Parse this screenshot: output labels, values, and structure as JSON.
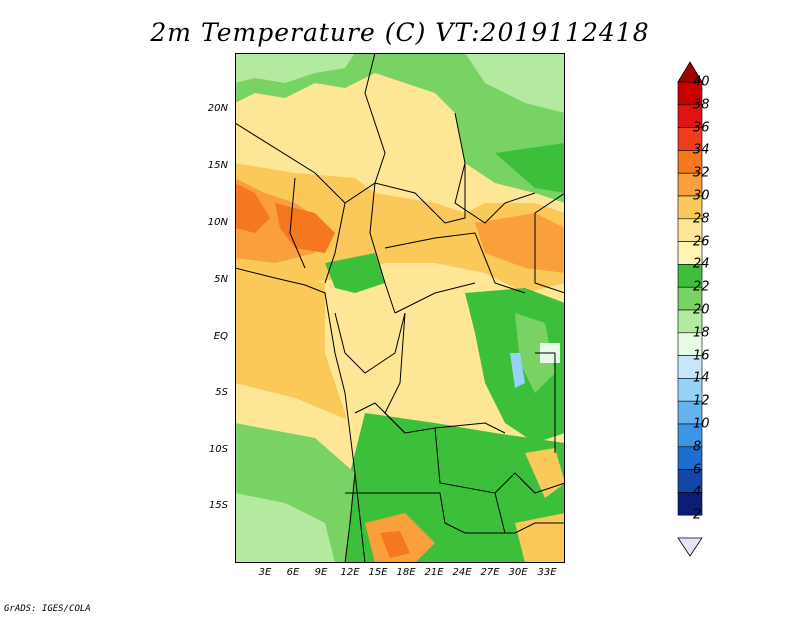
{
  "title": "2m Temperature (C) VT:2019112418",
  "footer": "GrADS: IGES/COLA",
  "map": {
    "lon_range": [
      0,
      35
    ],
    "lat_range": [
      -20,
      25
    ],
    "lat_ticks": [
      "20N",
      "15N",
      "10N",
      "5N",
      "EQ",
      "5S",
      "10S",
      "15S"
    ],
    "lat_values": [
      20,
      15,
      10,
      5,
      0,
      -5,
      -10,
      -15
    ],
    "lon_ticks": [
      "3E",
      "6E",
      "9E",
      "12E",
      "15E",
      "18E",
      "21E",
      "24E",
      "27E",
      "30E",
      "33E"
    ],
    "lon_values": [
      3,
      6,
      9,
      12,
      15,
      18,
      21,
      24,
      27,
      30,
      33
    ]
  },
  "colorbar": {
    "labels": [
      "40",
      "38",
      "36",
      "34",
      "32",
      "30",
      "28",
      "26",
      "24",
      "22",
      "20",
      "18",
      "16",
      "14",
      "12",
      "10",
      "8",
      "6",
      "4",
      "2"
    ],
    "colors": [
      "#a50000",
      "#c80000",
      "#e11414",
      "#f03c1e",
      "#f5781e",
      "#f9a03c",
      "#fbc85a",
      "#fde696",
      "#fff4b4",
      "#3cc03c",
      "#78d264",
      "#b4eaa0",
      "#e6fae6",
      "#c8e6fa",
      "#96d2fa",
      "#64b4f0",
      "#3c96e6",
      "#1e6ed2",
      "#1446aa",
      "#0a1e78"
    ]
  }
}
